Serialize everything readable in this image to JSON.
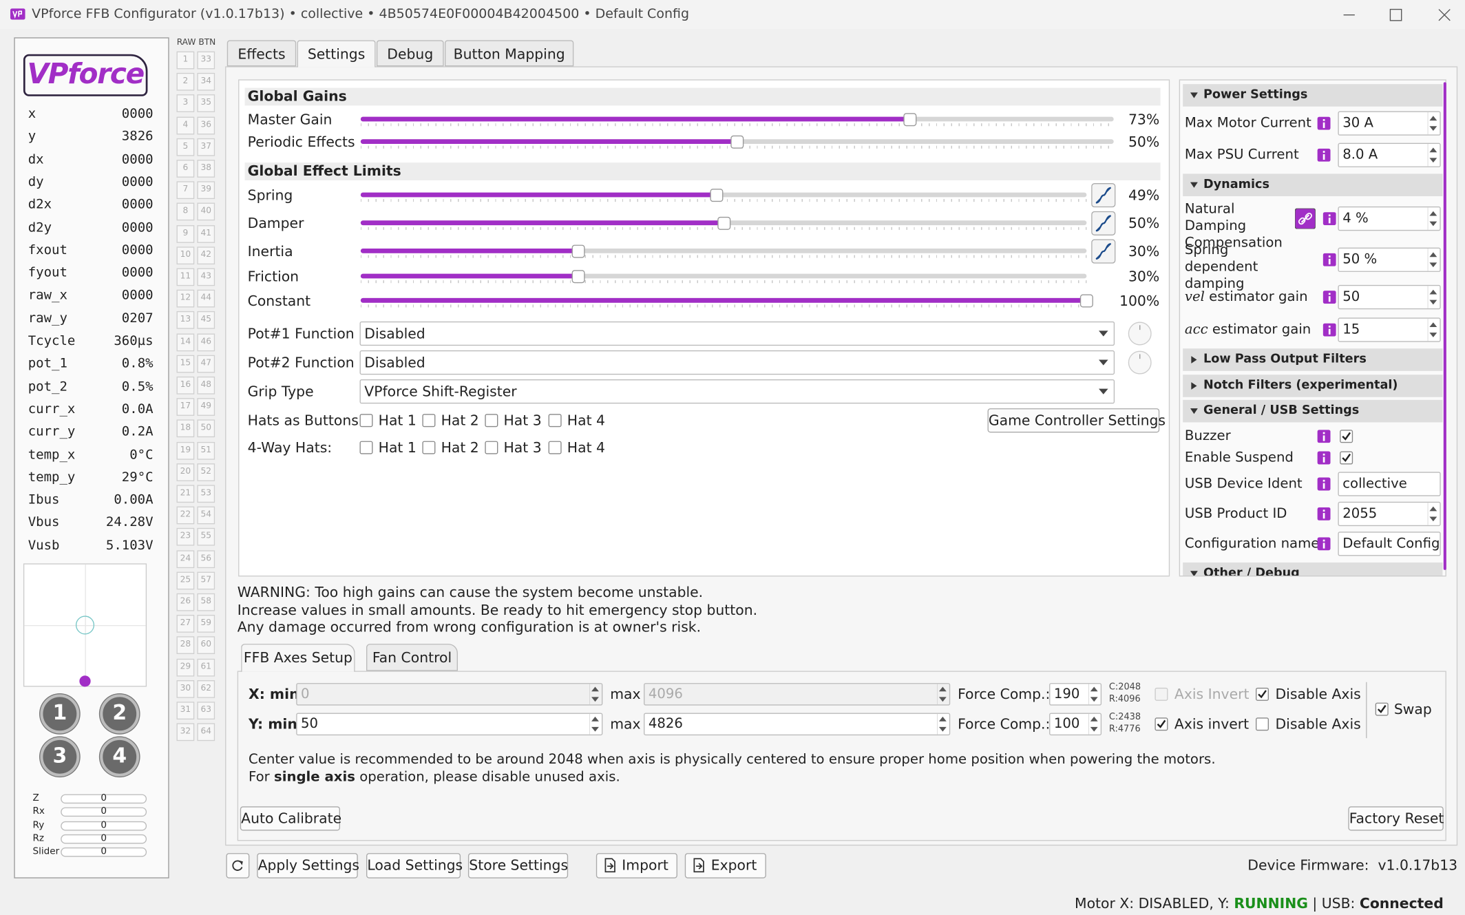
{
  "window": {
    "title": "VPforce FFB Configurator (v1.0.17b13) • collective • 4B50574E0F00004B42004500 • Default Config"
  },
  "sidebar": {
    "logo": "VPforce",
    "telemetry": [
      {
        "label": "x",
        "value": "0000"
      },
      {
        "label": "y",
        "value": "3826"
      },
      {
        "label": "dx",
        "value": "0000"
      },
      {
        "label": "dy",
        "value": "0000"
      },
      {
        "label": "d2x",
        "value": "0000"
      },
      {
        "label": "d2y",
        "value": "0000"
      },
      {
        "label": "fxout",
        "value": "0000"
      },
      {
        "label": "fyout",
        "value": "0000"
      },
      {
        "label": "raw_x",
        "value": "0000"
      },
      {
        "label": "raw_y",
        "value": "0207"
      },
      {
        "label": "Tcycle",
        "value": "360µs"
      },
      {
        "label": "pot_1",
        "value": "0.8%"
      },
      {
        "label": "pot_2",
        "value": "0.5%"
      },
      {
        "label": "curr_x",
        "value": "0.0A"
      },
      {
        "label": "curr_y",
        "value": "0.2A"
      },
      {
        "label": "temp_x",
        "value": "0°C"
      },
      {
        "label": "temp_y",
        "value": "29°C"
      },
      {
        "label": "Ibus",
        "value": "0.00A"
      },
      {
        "label": "Vbus",
        "value": "24.28V"
      },
      {
        "label": "Vusb",
        "value": "5.103V"
      }
    ],
    "buttons": [
      "1",
      "2",
      "3",
      "4"
    ],
    "axes": [
      {
        "name": "Z",
        "value": "0"
      },
      {
        "name": "Rx",
        "value": "0"
      },
      {
        "name": "Ry",
        "value": "0"
      },
      {
        "name": "Rz",
        "value": "0"
      },
      {
        "name": "Slider",
        "value": "0"
      }
    ]
  },
  "raw_buttons": {
    "header": "RAW BTN",
    "left": [
      1,
      2,
      3,
      4,
      5,
      6,
      7,
      8,
      9,
      10,
      11,
      12,
      13,
      14,
      15,
      16,
      17,
      18,
      19,
      20,
      21,
      22,
      23,
      24,
      25,
      26,
      27,
      28,
      29,
      30,
      31,
      32
    ],
    "right": [
      33,
      34,
      35,
      36,
      37,
      38,
      39,
      40,
      41,
      42,
      43,
      44,
      45,
      46,
      47,
      48,
      49,
      50,
      51,
      52,
      53,
      54,
      55,
      56,
      57,
      58,
      59,
      60,
      61,
      62,
      63,
      64
    ]
  },
  "tabs": {
    "items": [
      "Effects",
      "Settings",
      "Debug",
      "Button Mapping"
    ],
    "active": 1
  },
  "gains": {
    "title": "Global Gains",
    "slider_range": [
      0,
      100
    ],
    "sliders": [
      {
        "label": "Master Gain",
        "value": 73,
        "value_label": "73%"
      },
      {
        "label": "Periodic Effects",
        "value": 50,
        "value_label": "50%"
      }
    ]
  },
  "limits": {
    "title": "Global Effect Limits",
    "slider_range": [
      0,
      100
    ],
    "sliders": [
      {
        "label": "Spring",
        "value": 49,
        "value_label": "49%",
        "curve": true
      },
      {
        "label": "Damper",
        "value": 50,
        "value_label": "50%",
        "curve": true
      },
      {
        "label": "Inertia",
        "value": 30,
        "value_label": "30%",
        "curve": true
      },
      {
        "label": "Friction",
        "value": 30,
        "value_label": "30%"
      },
      {
        "label": "Constant",
        "value": 100,
        "value_label": "100%"
      }
    ]
  },
  "selects": [
    {
      "label": "Pot#1 Function",
      "value": "Disabled",
      "knob": true
    },
    {
      "label": "Pot#2 Function",
      "value": "Disabled",
      "knob": true
    },
    {
      "label": "Grip Type",
      "value": "VPforce Shift-Register"
    }
  ],
  "hats": [
    {
      "label": "Hats as Buttons:",
      "options": [
        {
          "label": "Hat 1",
          "checked": false
        },
        {
          "label": "Hat 2",
          "checked": false
        },
        {
          "label": "Hat 3",
          "checked": false
        },
        {
          "label": "Hat 4",
          "checked": false
        }
      ]
    },
    {
      "label": "4-Way Hats:",
      "options": [
        {
          "label": "Hat 1",
          "checked": false
        },
        {
          "label": "Hat 2",
          "checked": false
        },
        {
          "label": "Hat 3",
          "checked": false
        },
        {
          "label": "Hat 4",
          "checked": false
        }
      ]
    }
  ],
  "game_controller_button": "Game Controller Settings",
  "right_panel": {
    "sections": [
      {
        "title": "Power Settings",
        "expanded": true,
        "items": [
          {
            "label": "Max Motor Current",
            "control": "spin",
            "value": "30 A"
          },
          {
            "label": "Max PSU Current",
            "control": "spin",
            "value": "8.0 A"
          }
        ]
      },
      {
        "title": "Dynamics",
        "expanded": true,
        "items": [
          {
            "label": "Natural Damping Compensation",
            "control": "spin",
            "value": "4 %",
            "link": true
          },
          {
            "label": "Spring dependent damping",
            "control": "spin",
            "value": "50 %"
          },
          {
            "label_em": "vel",
            "label": "estimator gain",
            "control": "spin",
            "value": "50"
          },
          {
            "label_em": "acc",
            "label": "estimator gain",
            "control": "spin",
            "value": "15"
          }
        ]
      },
      {
        "title": "Low Pass Output Filters",
        "expanded": false
      },
      {
        "title": "Notch Filters (experimental)",
        "expanded": false
      },
      {
        "title": "General / USB Settings",
        "expanded": true,
        "items": [
          {
            "label": "Buzzer",
            "control": "check",
            "checked": true
          },
          {
            "label": "Enable Suspend",
            "control": "check",
            "checked": true
          },
          {
            "label": "USB Device Ident",
            "control": "text",
            "value": "collective"
          },
          {
            "label": "USB Product ID",
            "control": "spin",
            "value": "2055"
          },
          {
            "label": "Configuration name",
            "control": "text",
            "value": "Default Config"
          }
        ]
      },
      {
        "title": "Other / Debug",
        "expanded": true
      }
    ]
  },
  "warning": {
    "label": "WARNING:",
    "lines": [
      " Too high gains can cause the system become unstable.",
      "Increase values in small amounts. Be ready to hit emergency stop button.",
      "Any damage occurred from wrong configuration is at owner's risk."
    ]
  },
  "axes_tabs": {
    "items": [
      "FFB Axes Setup",
      "Fan Control"
    ],
    "active": 0
  },
  "axes_setup": {
    "rows": [
      {
        "min_label": "X: min",
        "min": "0",
        "max_label": "max",
        "max": "4096",
        "range_disabled": true,
        "force_label": "Force Comp.:",
        "force": "190",
        "c": "C:2048",
        "r": "R:4096",
        "invert_label": "Axis Invert",
        "invert": false,
        "invert_disabled": true,
        "disable_label": "Disable Axis",
        "disable": true
      },
      {
        "min_label": "Y: min",
        "min": "50",
        "max_label": "max",
        "max": "4826",
        "range_disabled": false,
        "force_label": "Force Comp.:",
        "force": "100",
        "c": "C:2438",
        "r": "R:4776",
        "invert_label": "Axis invert",
        "invert": true,
        "invert_disabled": false,
        "disable_label": "Disable Axis",
        "disable": false
      }
    ],
    "swap_label": "Swap",
    "swap": true,
    "note_line1": "Center value is recommended to be around 2048 when axis is physically centered to ensure proper home position when powering the motors.",
    "note_line2_pre": "For ",
    "note_line2_bold": "single axis",
    "note_line2_post": " operation, please disable unused axis.",
    "auto_calibrate": "Auto Calibrate",
    "factory_reset": "Factory Reset"
  },
  "footer": {
    "buttons": [
      "Apply Settings",
      "Load Settings",
      "Store Settings"
    ],
    "import": "Import",
    "export": "Export",
    "firmware_label": "Device Firmware:",
    "firmware": "v1.0.17b13"
  },
  "status": {
    "prefix": "Motor X: DISABLED, Y: ",
    "motor_y": "RUNNING",
    "usb_label": " | USB: ",
    "usb": "Connected"
  }
}
